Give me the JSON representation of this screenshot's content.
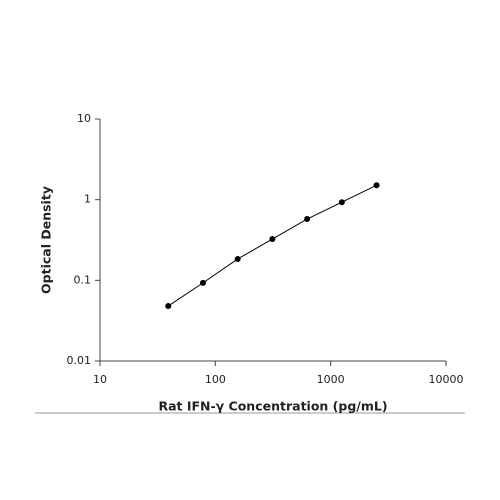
{
  "chart_data": {
    "type": "scatter",
    "x_label": "Rat IFN-γ Concentration (pg/mL)",
    "y_label": "Optical Density",
    "x": [
      39.06,
      78.13,
      156.25,
      312.5,
      625,
      1250,
      2500
    ],
    "values": [
      0.048,
      0.093,
      0.184,
      0.325,
      0.575,
      0.93,
      1.51
    ],
    "color": "#000000",
    "line": true,
    "xscale": "log",
    "yscale": "log",
    "xlim": [
      10,
      10000
    ],
    "ylim": [
      0.01,
      10
    ],
    "xticks": [
      10,
      100,
      1000,
      10000
    ],
    "yticks": [
      0.01,
      0.1,
      1,
      10
    ]
  }
}
